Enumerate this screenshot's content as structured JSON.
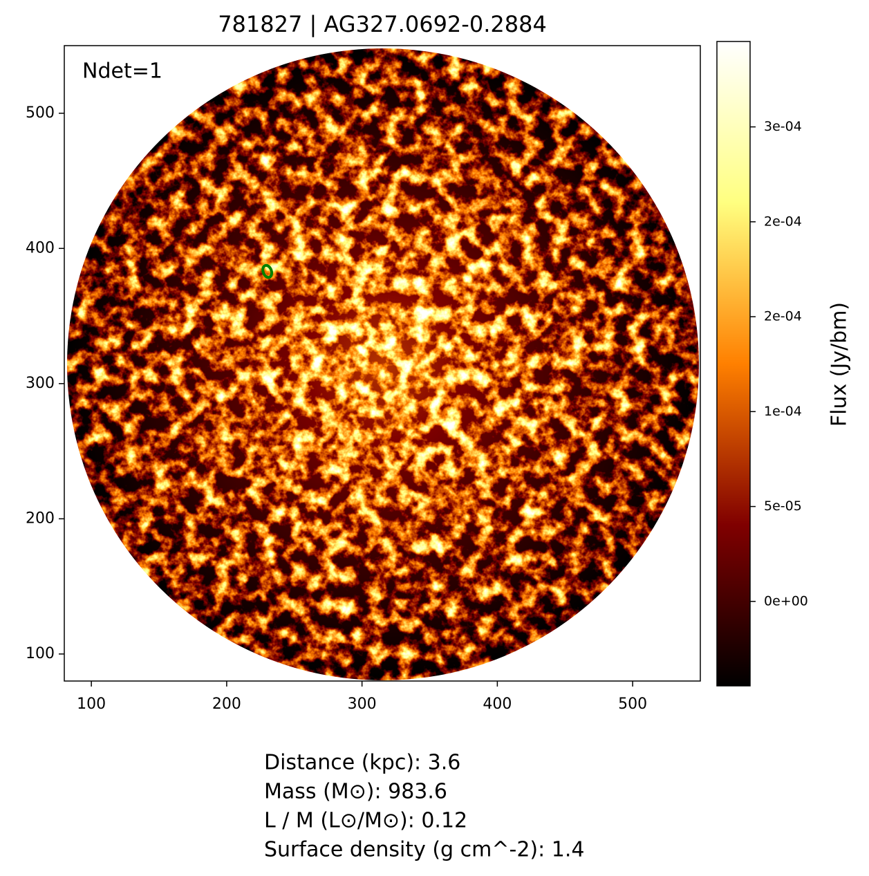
{
  "chart_data": {
    "type": "image",
    "title": "781827 | AG327.0692-0.2884",
    "annotation": "Ndet=1",
    "xlim": [
      80,
      550
    ],
    "ylim": [
      80,
      550
    ],
    "xticks": [
      100,
      200,
      300,
      400,
      500
    ],
    "yticks": [
      100,
      200,
      300,
      400,
      500
    ],
    "detections": [
      {
        "x": 230,
        "y": 383,
        "color": "#008000"
      }
    ],
    "colorbar": {
      "label": "Flux (Jy/bm)",
      "colormap": "afmhot",
      "clim": [
        -4.45e-05,
        0.000295
      ],
      "ticks": [
        {
          "value": 0,
          "label": "0e+00"
        },
        {
          "value": 5e-05,
          "label": "5e-05"
        },
        {
          "value": 0.0001,
          "label": "1e-04"
        },
        {
          "value": 0.00015,
          "label": "2e-04"
        },
        {
          "value": 0.0002,
          "label": "2e-04"
        },
        {
          "value": 0.00025,
          "label": "3e-04"
        }
      ]
    },
    "info": [
      "Distance (kpc): 3.6",
      "Mass (M⊙): 983.6",
      "L / M (L⊙/M⊙): 0.12",
      "Surface density (g cm^-2): 1.4"
    ]
  }
}
